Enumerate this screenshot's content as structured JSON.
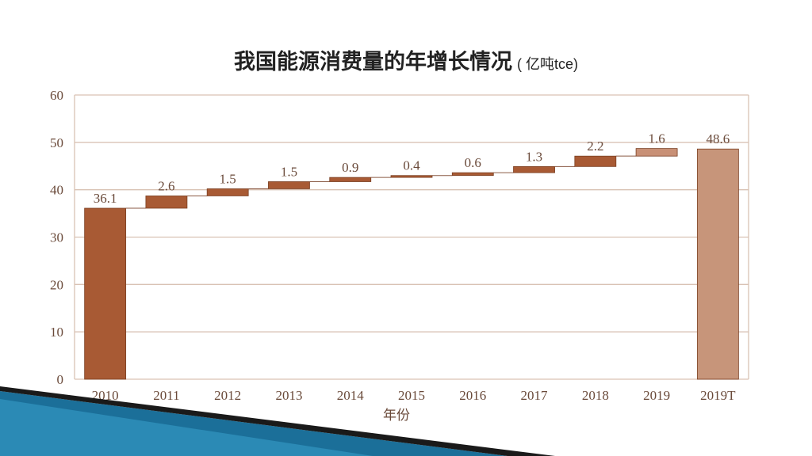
{
  "title": "我国能源消费量的年增长情况",
  "title_unit": "( 亿吨tce)",
  "colors": {
    "bar_base": "#a85a34",
    "bar_inc": "#a85a34",
    "bar_last_inc": "#c89076",
    "bar_total": "#c7957a",
    "grid": "#d9c2b4",
    "axis_text": "#6a4a3a"
  },
  "chart_data": {
    "type": "bar",
    "subtype": "waterfall",
    "title": "我国能源消费量的年增长情况",
    "unit": "亿吨tce",
    "xlabel": "年份",
    "ylabel": "",
    "ylim": [
      0,
      60
    ],
    "y_ticks": [
      "0",
      "10",
      "20",
      "30",
      "40",
      "50",
      "60"
    ],
    "y_tick_values": [
      0,
      10,
      20,
      30,
      40,
      50,
      60
    ],
    "categories": [
      "2010",
      "2011",
      "2012",
      "2013",
      "2014",
      "2015",
      "2016",
      "2017",
      "2018",
      "2019",
      "2019T"
    ],
    "values": [
      36.1,
      2.6,
      1.5,
      1.5,
      0.9,
      0.4,
      0.6,
      1.3,
      2.2,
      1.6,
      48.6
    ],
    "labels": [
      "36.1",
      "2.6",
      "1.5",
      "1.5",
      "0.9",
      "0.4",
      "0.6",
      "1.3",
      "2.2",
      "1.6",
      "48.6"
    ],
    "kinds": [
      "total",
      "increase",
      "increase",
      "increase",
      "increase",
      "increase",
      "increase",
      "increase",
      "increase",
      "increase",
      "total"
    ],
    "grid": true,
    "legend": "none"
  }
}
